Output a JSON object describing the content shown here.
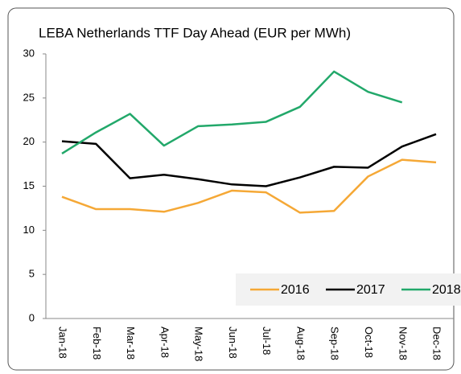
{
  "chart_data": {
    "type": "line",
    "title": "LEBA Netherlands TTF Day Ahead (EUR per MWh)",
    "categories": [
      "Jan-18",
      "Feb-18",
      "Mar-18",
      "Apr-18",
      "May-18",
      "Jun-18",
      "Jul-18",
      "Aug-18",
      "Sep-18",
      "Oct-18",
      "Nov-18",
      "Dec-18"
    ],
    "series": [
      {
        "name": "2016",
        "color": "#f5a836",
        "values": [
          13.8,
          12.4,
          12.4,
          12.1,
          13.1,
          14.5,
          14.3,
          12.0,
          12.2,
          16.1,
          18.0,
          17.7
        ]
      },
      {
        "name": "2017",
        "color": "#000000",
        "values": [
          20.1,
          19.8,
          15.9,
          16.3,
          15.8,
          15.2,
          15.0,
          16.0,
          17.2,
          17.1,
          19.5,
          20.9
        ]
      },
      {
        "name": "2018",
        "color": "#22a86a",
        "values": [
          18.7,
          21.1,
          23.2,
          19.6,
          21.8,
          22.0,
          22.3,
          24.0,
          28.0,
          25.7,
          24.5,
          null
        ]
      }
    ],
    "ylim": [
      0,
      30
    ],
    "yticks": [
      0,
      5,
      10,
      15,
      20,
      25,
      30
    ],
    "grid": false,
    "legend": "lower right"
  }
}
